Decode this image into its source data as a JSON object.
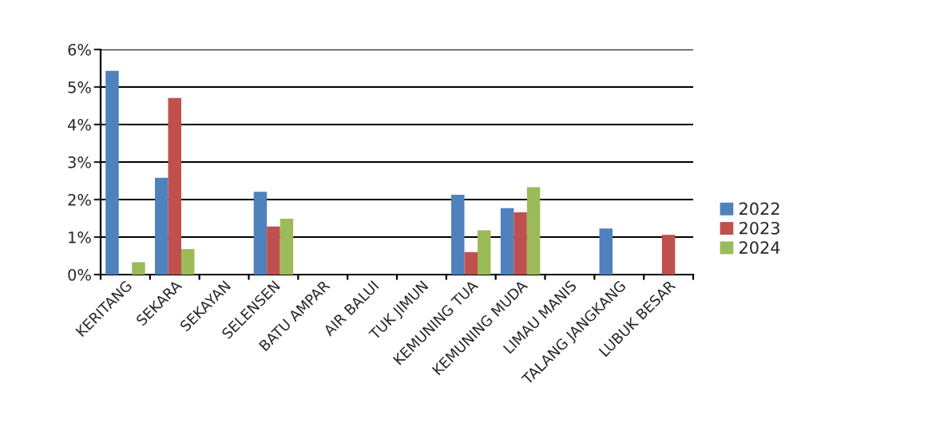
{
  "chart_data": {
    "type": "bar",
    "categories": [
      "KERITANG",
      "SEKARA",
      "SEKAYAN",
      "SELENSEN",
      "BATU AMPAR",
      "AIR BALUI",
      "TUK JIMUN",
      "KEMUNING TUA",
      "KEMUNING MUDA",
      "LIMAU MANIS",
      "TALANG JANGKANG",
      "LUBUK BESAR"
    ],
    "series": [
      {
        "name": "2022",
        "color": "#4f81bd",
        "values": [
          5.43,
          2.58,
          null,
          2.21,
          null,
          null,
          null,
          2.13,
          1.77,
          null,
          1.23,
          null
        ]
      },
      {
        "name": "2023",
        "color": "#c0504d",
        "values": [
          null,
          4.71,
          null,
          1.28,
          null,
          null,
          null,
          0.6,
          1.66,
          null,
          null,
          1.06
        ]
      },
      {
        "name": "2024",
        "color": "#9bbb59",
        "values": [
          0.33,
          0.68,
          null,
          1.49,
          null,
          null,
          null,
          1.18,
          2.33,
          null,
          null,
          null
        ]
      }
    ],
    "ylim": [
      0,
      6
    ],
    "yticks": [
      {
        "value": 0,
        "label": "0%"
      },
      {
        "value": 1,
        "label": "1%"
      },
      {
        "value": 2,
        "label": "2%"
      },
      {
        "value": 3,
        "label": "3%"
      },
      {
        "value": 4,
        "label": "4%"
      },
      {
        "value": 5,
        "label": "5%"
      },
      {
        "value": 6,
        "label": "6%"
      }
    ],
    "grid": "y",
    "legend": "right"
  }
}
